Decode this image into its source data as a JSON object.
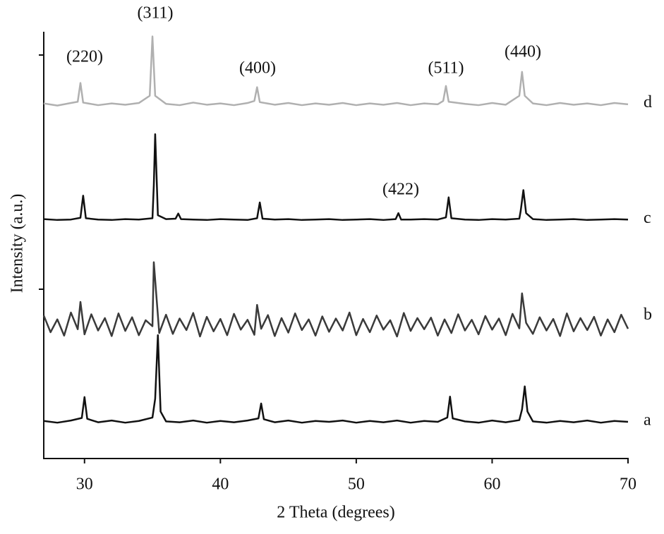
{
  "chart_data": {
    "type": "line",
    "xlabel": "2 Theta (degrees)",
    "ylabel": "Intensity (a.u.)",
    "xlim": [
      27,
      70
    ],
    "ylim": [
      0,
      100
    ],
    "xticks": [
      30,
      40,
      50,
      60,
      70
    ],
    "annotations": [
      "(220)",
      "(311)",
      "(400)",
      "(511)",
      "(440)",
      "(422)"
    ],
    "series": [
      {
        "name": "a",
        "color": "#111111",
        "x": [
          27,
          28,
          29,
          29.8,
          30,
          30.2,
          31,
          32,
          33,
          34,
          35,
          35.2,
          35.4,
          35.6,
          36,
          37,
          38,
          39,
          40,
          41,
          42,
          42.8,
          43,
          43.2,
          44,
          45,
          46,
          47,
          48,
          49,
          50,
          51,
          52,
          53,
          54,
          55,
          56,
          56.7,
          56.9,
          57.1,
          58,
          59,
          60,
          61,
          62,
          62.2,
          62.4,
          62.6,
          63,
          64,
          65,
          66,
          67,
          68,
          69,
          70
        ],
        "values": [
          8.8,
          8.4,
          8.9,
          9.5,
          14.4,
          9.3,
          8.5,
          8.9,
          8.4,
          8.8,
          9.6,
          14,
          28.9,
          11,
          8.7,
          8.5,
          8.9,
          8.4,
          8.8,
          8.5,
          8.9,
          9.4,
          12.9,
          9.2,
          8.5,
          8.9,
          8.4,
          8.8,
          8.6,
          8.9,
          8.4,
          8.8,
          8.5,
          8.9,
          8.4,
          8.8,
          8.6,
          9.6,
          14.5,
          9.4,
          8.7,
          8.4,
          8.9,
          8.5,
          9.0,
          11.5,
          16.9,
          11.0,
          8.7,
          8.4,
          8.8,
          8.5,
          8.9,
          8.4,
          8.8,
          8.6
        ]
      },
      {
        "name": "b",
        "color": "#3a3a3a",
        "x": [
          27,
          27.5,
          28,
          28.5,
          29,
          29.5,
          29.7,
          30,
          30.5,
          31,
          31.5,
          32,
          32.5,
          33,
          33.5,
          34,
          34.5,
          35,
          35.1,
          35.5,
          36,
          36.5,
          37,
          37.5,
          38,
          38.5,
          39,
          39.5,
          40,
          40.5,
          41,
          41.5,
          42,
          42.5,
          42.7,
          43,
          43.5,
          44,
          44.5,
          45,
          45.5,
          46,
          46.5,
          47,
          47.5,
          48,
          48.5,
          49,
          49.5,
          50,
          50.5,
          51,
          51.5,
          52,
          52.5,
          53,
          53.5,
          54,
          54.5,
          55,
          55.5,
          56,
          56.5,
          57,
          57.5,
          58,
          58.5,
          59,
          59.5,
          60,
          60.5,
          61,
          61.5,
          62,
          62.2,
          62.5,
          63,
          63.5,
          64,
          64.5,
          65,
          65.5,
          66,
          66.5,
          67,
          67.5,
          68,
          68.5,
          69,
          69.5,
          70
        ],
        "values": [
          33.5,
          29.6,
          32.6,
          28.8,
          34.2,
          30.3,
          36.7,
          29.1,
          33.8,
          30.0,
          32.9,
          28.7,
          34.0,
          29.9,
          33.1,
          28.9,
          32.4,
          31.0,
          46,
          29.4,
          33.7,
          29.2,
          32.8,
          30.1,
          34.1,
          28.6,
          33.2,
          29.8,
          32.7,
          28.9,
          33.9,
          30.2,
          32.5,
          29.0,
          36,
          30.4,
          33.6,
          28.7,
          32.9,
          29.5,
          34.0,
          30.1,
          32.6,
          28.8,
          33.3,
          29.7,
          32.8,
          30.0,
          34.2,
          28.9,
          32.7,
          29.6,
          33.5,
          30.2,
          32.4,
          28.6,
          34.1,
          29.9,
          32.9,
          30.3,
          33.0,
          28.8,
          32.6,
          29.4,
          33.8,
          30.0,
          32.5,
          29.1,
          33.4,
          30.2,
          32.8,
          28.9,
          33.9,
          30.5,
          38.7,
          31.8,
          29.2,
          33.1,
          30.0,
          32.7,
          28.7,
          34.0,
          29.8,
          32.9,
          30.1,
          33.2,
          28.8,
          32.6,
          29.6,
          33.7,
          30.4
        ]
      },
      {
        "name": "c",
        "color": "#111111",
        "x": [
          27,
          28,
          29,
          29.7,
          29.9,
          30.1,
          31,
          32,
          33,
          34,
          35,
          35.1,
          35.2,
          35.4,
          36,
          36.7,
          36.9,
          37.1,
          38,
          39,
          40,
          41,
          42,
          42.7,
          42.9,
          43.1,
          44,
          45,
          46,
          47,
          48,
          49,
          50,
          51,
          52,
          52.9,
          53.1,
          53.3,
          54,
          55,
          56,
          56.6,
          56.8,
          57,
          58,
          59,
          60,
          61,
          62,
          62.1,
          62.3,
          62.5,
          63,
          64,
          65,
          66,
          67,
          68,
          69,
          70
        ],
        "values": [
          56.1,
          55.9,
          56.0,
          56.4,
          61.6,
          56.3,
          56.0,
          55.9,
          56.1,
          56.0,
          56.3,
          64,
          76,
          57,
          56.1,
          56.2,
          57.4,
          56.1,
          56.0,
          55.9,
          56.1,
          56.0,
          55.9,
          56.3,
          60,
          56.2,
          56.0,
          56.1,
          55.9,
          56.0,
          56.1,
          55.9,
          56.0,
          56.1,
          55.9,
          56.1,
          57.5,
          56.0,
          56.0,
          56.1,
          56.0,
          56.5,
          61.2,
          56.3,
          56.0,
          55.9,
          56.1,
          56.0,
          56.2,
          58,
          62.9,
          57.5,
          56.1,
          55.9,
          56.0,
          56.1,
          55.9,
          56.0,
          56.1,
          56.0
        ]
      },
      {
        "name": "d",
        "color": "#b0b0b0",
        "x": [
          27,
          28,
          29,
          29.5,
          29.7,
          29.9,
          31,
          32,
          33,
          34,
          34.8,
          35,
          35.2,
          36,
          37,
          38,
          39,
          40,
          41,
          42,
          42.5,
          42.7,
          42.9,
          44,
          45,
          46,
          47,
          48,
          49,
          50,
          51,
          52,
          53,
          54,
          55,
          56,
          56.4,
          56.6,
          56.8,
          58,
          59,
          60,
          61,
          62,
          62.2,
          62.4,
          63,
          64,
          65,
          66,
          67,
          68,
          69,
          70
        ],
        "values": [
          83.2,
          82.7,
          83.3,
          83.6,
          88,
          83.4,
          82.8,
          83.2,
          82.9,
          83.3,
          85,
          98.9,
          85,
          83.1,
          82.8,
          83.4,
          82.9,
          83.2,
          82.8,
          83.3,
          83.8,
          87,
          83.5,
          82.9,
          83.3,
          82.8,
          83.2,
          82.9,
          83.3,
          82.8,
          83.2,
          82.9,
          83.3,
          82.8,
          83.2,
          83.0,
          83.8,
          87.3,
          83.6,
          83.1,
          82.8,
          83.3,
          82.9,
          85,
          90.6,
          85,
          83.2,
          82.8,
          83.3,
          82.9,
          83.2,
          82.8,
          83.3,
          83.0
        ]
      }
    ]
  }
}
